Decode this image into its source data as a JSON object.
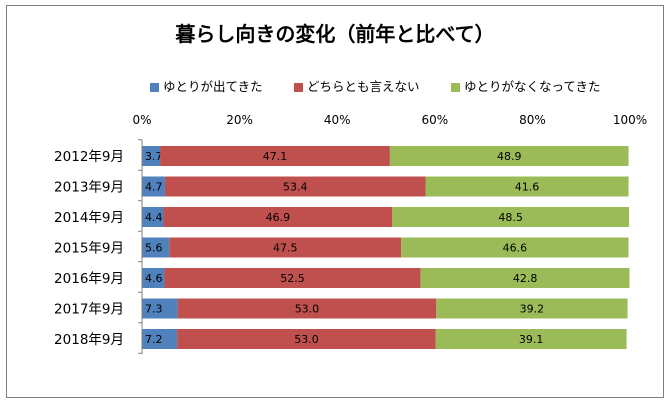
{
  "chart_data": {
    "type": "bar",
    "orientation": "horizontal",
    "stacked": "percent",
    "title": "暮らし向きの変化（前年と比べて）",
    "categories": [
      "2012年9月",
      "2013年9月",
      "2014年9月",
      "2015年9月",
      "2016年9月",
      "2017年9月",
      "2018年9月"
    ],
    "series": [
      {
        "name": "ゆとりが出てきた",
        "color": "#4f81bd",
        "values": [
          3.7,
          4.7,
          4.4,
          5.6,
          4.6,
          7.3,
          7.2
        ],
        "labels": [
          "3.7",
          "4.7",
          "4.4",
          "5.6",
          "4.6",
          "7.3",
          "7.2"
        ]
      },
      {
        "name": "どちらとも言えない",
        "color": "#c0504d",
        "values": [
          47.1,
          53.4,
          46.9,
          47.5,
          52.5,
          53.0,
          53.0
        ],
        "labels": [
          "47.1",
          "53.4",
          "46.9",
          "47.5",
          "52.5",
          "53.0",
          "53.0"
        ]
      },
      {
        "name": "ゆとりがなくなってきた",
        "color": "#9bbb59",
        "values": [
          48.9,
          41.6,
          48.5,
          46.6,
          42.8,
          39.2,
          39.1
        ],
        "labels": [
          "48.9",
          "41.6",
          "48.5",
          "46.6",
          "42.8",
          "39.2",
          "39.1"
        ]
      }
    ],
    "x_ticks": [
      "0%",
      "20%",
      "40%",
      "60%",
      "80%",
      "100%"
    ],
    "xlim": [
      0,
      100
    ],
    "grid": false,
    "legend_position": "top"
  }
}
